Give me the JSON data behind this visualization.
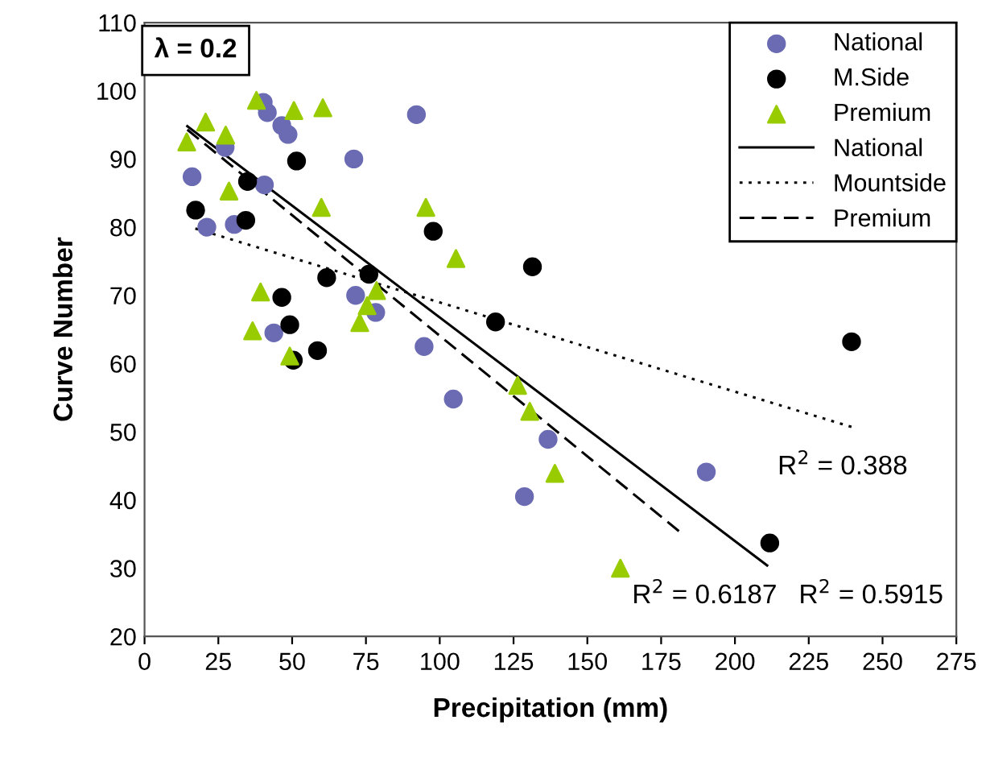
{
  "chart_data": {
    "type": "scatter",
    "xlabel": "Precipitation (mm)",
    "ylabel": "Curve Number",
    "xlim": [
      0,
      275
    ],
    "xticks": [
      0,
      25,
      50,
      75,
      100,
      125,
      150,
      175,
      200,
      225,
      250,
      275
    ],
    "ylim": [
      20,
      110
    ],
    "yticks": [
      20,
      30,
      40,
      50,
      60,
      70,
      80,
      90,
      100,
      110
    ],
    "grid": false,
    "legend": "top right",
    "annotations": [
      "λ = 0.2",
      "R$^{2}$ = 0.388",
      "R$^{2}$ = 0.6187",
      "R$^{2}$ = 0.5915"
    ],
    "series": [
      {
        "name": "National",
        "marker": "circle",
        "color": "#6b6bb3",
        "x": [
          16.1,
          21.1,
          27.3,
          30.4,
          40.2,
          41.6,
          40.6,
          46.5,
          48.6,
          43.8,
          70.9,
          71.5,
          78.3,
          92.1,
          94.7,
          104.6,
          128.7,
          136.7,
          190.3
        ],
        "values": [
          87.4,
          80,
          91.7,
          80.4,
          98.3,
          96.8,
          86.2,
          94.9,
          93.6,
          64.5,
          90,
          70,
          67.5,
          96.5,
          62.5,
          54.8,
          40.5,
          48.9,
          44.1
        ]
      },
      {
        "name": "M.Side",
        "marker": "circle",
        "color": "#000000",
        "x": [
          17.3,
          34.9,
          34.3,
          51.5,
          46.5,
          49.2,
          50.4,
          58.6,
          61.7,
          76,
          97.8,
          118.9,
          131.4,
          239.5,
          211.8
        ],
        "values": [
          82.5,
          86.7,
          81,
          89.7,
          69.7,
          65.7,
          60.5,
          61.9,
          72.6,
          73.1,
          79.4,
          66.1,
          74.2,
          63.2,
          33.7
        ]
      },
      {
        "name": "Premium",
        "marker": "triangle",
        "color": "#99cc00",
        "x": [
          14.3,
          20.7,
          27.5,
          28.6,
          37.9,
          50.6,
          60.4,
          59.9,
          39.3,
          36.6,
          49.2,
          72.9,
          75.4,
          78.6,
          95.3,
          105.5,
          126.4,
          130.5,
          139,
          161.2
        ],
        "values": [
          92.5,
          95.4,
          93.5,
          85.3,
          98.6,
          97.1,
          97.5,
          82.9,
          70.5,
          64.8,
          61.1,
          66,
          68.5,
          70.7,
          82.9,
          75.4,
          56.8,
          53,
          43.9,
          30
        ]
      },
      {
        "name": "National",
        "type": "line",
        "line_style": "solid",
        "color": "#000000",
        "x": [
          14.5,
          210.9
        ],
        "values": [
          94.8,
          30.4
        ]
      },
      {
        "name": "Mountside",
        "type": "line",
        "line_style": "dotted",
        "color": "#000000",
        "x": [
          17.2,
          240.4
        ],
        "values": [
          79.8,
          50.6
        ]
      },
      {
        "name": "Premium",
        "type": "line",
        "line_style": "dashed",
        "color": "#000000",
        "x": [
          14.5,
          181.4
        ],
        "values": [
          94.3,
          35.3
        ]
      }
    ]
  }
}
